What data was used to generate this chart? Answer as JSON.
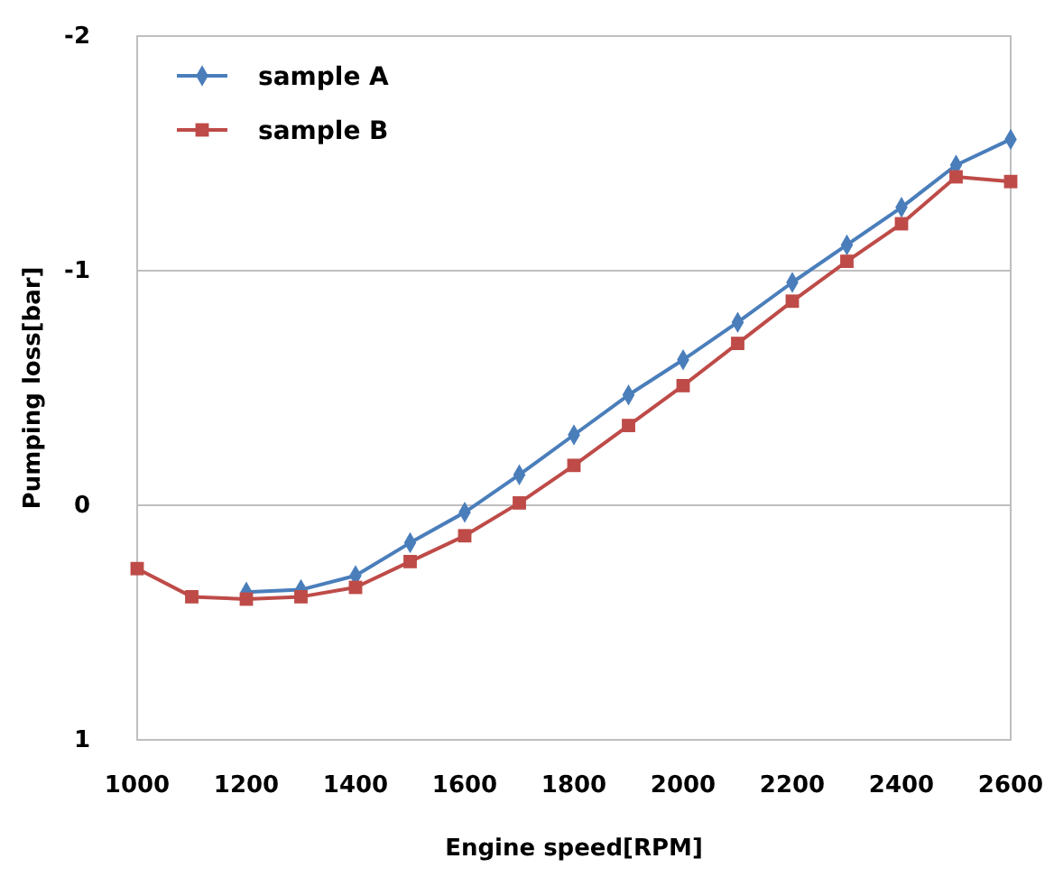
{
  "chart_data": {
    "type": "line",
    "xlabel": "Engine speed[RPM]",
    "ylabel": "Pumping loss[bar]",
    "x": [
      1000,
      1100,
      1200,
      1300,
      1400,
      1500,
      1600,
      1700,
      1800,
      1900,
      2000,
      2100,
      2200,
      2300,
      2400,
      2500,
      2600
    ],
    "series": [
      {
        "name": "sample A",
        "color": "#4a7ebb",
        "marker": "diamond",
        "values": [
          null,
          null,
          0.37,
          0.36,
          0.3,
          0.16,
          0.03,
          -0.13,
          -0.3,
          -0.47,
          -0.62,
          -0.78,
          -0.95,
          -1.11,
          -1.27,
          -1.45,
          -1.56
        ]
      },
      {
        "name": "sample B",
        "color": "#be4b48",
        "marker": "square",
        "values": [
          0.27,
          0.39,
          0.4,
          0.39,
          0.35,
          0.24,
          0.13,
          -0.01,
          -0.17,
          -0.34,
          -0.51,
          -0.69,
          -0.87,
          -1.04,
          -1.2,
          -1.4,
          -1.38
        ]
      }
    ],
    "xlim": [
      1000,
      2600
    ],
    "xticks": [
      1000,
      1200,
      1400,
      1600,
      1800,
      2000,
      2200,
      2400,
      2600
    ],
    "ylim": [
      1,
      -2
    ],
    "yticks": [
      1,
      0,
      -1,
      -2
    ],
    "grid": "y",
    "legend": "top left"
  }
}
